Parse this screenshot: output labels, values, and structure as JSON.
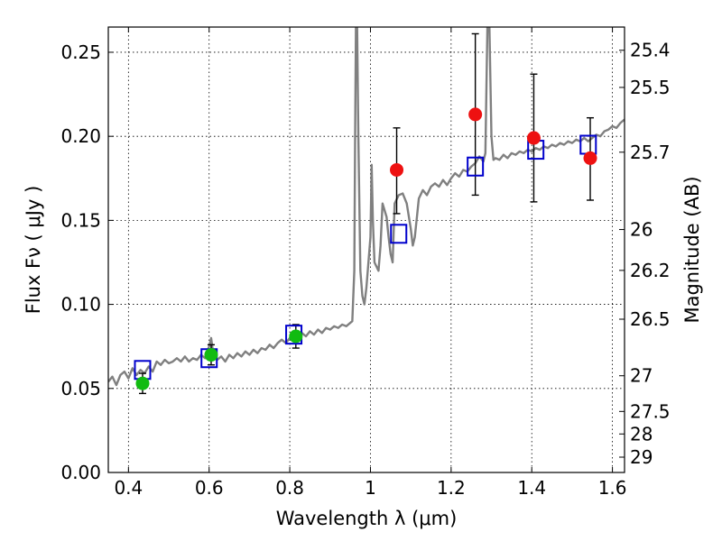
{
  "chart_data": {
    "type": "scatter",
    "xlabel": "Wavelength  λ (μm)",
    "ylabel": "Flux  Fν ( μJy )",
    "ylabel_right": "Magnitude (AB)",
    "xlim": [
      0.35,
      1.63
    ],
    "ylim": [
      0.0,
      0.265
    ],
    "grid": true,
    "x_ticks": [
      {
        "value": 0.4,
        "label": "0.4"
      },
      {
        "value": 0.6,
        "label": "0.6"
      },
      {
        "value": 0.8,
        "label": "0.8"
      },
      {
        "value": 1.0,
        "label": "1"
      },
      {
        "value": 1.2,
        "label": "1.2"
      },
      {
        "value": 1.4,
        "label": "1.4"
      },
      {
        "value": 1.6,
        "label": "1.6"
      }
    ],
    "y_ticks": [
      {
        "value": 0.0,
        "label": "0.00"
      },
      {
        "value": 0.05,
        "label": "0.05"
      },
      {
        "value": 0.1,
        "label": "0.10"
      },
      {
        "value": 0.15,
        "label": "0.15"
      },
      {
        "value": 0.2,
        "label": "0.20"
      },
      {
        "value": 0.25,
        "label": "0.25"
      }
    ],
    "right_ticks": [
      {
        "value": 25.4,
        "label": "25.4"
      },
      {
        "value": 25.5,
        "label": "25.5"
      },
      {
        "value": 25.7,
        "label": "25.7"
      },
      {
        "value": 26,
        "label": "26"
      },
      {
        "value": 26.2,
        "label": "26.2"
      },
      {
        "value": 26.5,
        "label": "26.5"
      },
      {
        "value": 27,
        "label": "27"
      },
      {
        "value": 27.5,
        "label": "27.5"
      },
      {
        "value": 28,
        "label": "28"
      },
      {
        "value": 29,
        "label": "29"
      }
    ],
    "series": [
      {
        "kind": "spectrum",
        "color": "#808080",
        "points": [
          [
            0.35,
            0.054
          ],
          [
            0.36,
            0.057
          ],
          [
            0.37,
            0.052
          ],
          [
            0.38,
            0.058
          ],
          [
            0.39,
            0.06
          ],
          [
            0.4,
            0.056
          ],
          [
            0.41,
            0.062
          ],
          [
            0.42,
            0.058
          ],
          [
            0.43,
            0.061
          ],
          [
            0.44,
            0.059
          ],
          [
            0.45,
            0.063
          ],
          [
            0.46,
            0.06
          ],
          [
            0.47,
            0.066
          ],
          [
            0.48,
            0.064
          ],
          [
            0.49,
            0.067
          ],
          [
            0.5,
            0.065
          ],
          [
            0.51,
            0.066
          ],
          [
            0.52,
            0.068
          ],
          [
            0.53,
            0.066
          ],
          [
            0.54,
            0.069
          ],
          [
            0.55,
            0.066
          ],
          [
            0.56,
            0.068
          ],
          [
            0.57,
            0.067
          ],
          [
            0.58,
            0.07
          ],
          [
            0.59,
            0.068
          ],
          [
            0.6,
            0.075
          ],
          [
            0.605,
            0.08
          ],
          [
            0.61,
            0.071
          ],
          [
            0.62,
            0.067
          ],
          [
            0.63,
            0.069
          ],
          [
            0.64,
            0.066
          ],
          [
            0.65,
            0.07
          ],
          [
            0.66,
            0.068
          ],
          [
            0.67,
            0.071
          ],
          [
            0.68,
            0.069
          ],
          [
            0.69,
            0.072
          ],
          [
            0.7,
            0.07
          ],
          [
            0.71,
            0.073
          ],
          [
            0.72,
            0.071
          ],
          [
            0.73,
            0.074
          ],
          [
            0.74,
            0.073
          ],
          [
            0.75,
            0.076
          ],
          [
            0.76,
            0.074
          ],
          [
            0.77,
            0.077
          ],
          [
            0.78,
            0.079
          ],
          [
            0.79,
            0.077
          ],
          [
            0.8,
            0.08
          ],
          [
            0.81,
            0.082
          ],
          [
            0.82,
            0.08
          ],
          [
            0.83,
            0.083
          ],
          [
            0.84,
            0.081
          ],
          [
            0.85,
            0.084
          ],
          [
            0.86,
            0.082
          ],
          [
            0.87,
            0.085
          ],
          [
            0.88,
            0.083
          ],
          [
            0.89,
            0.086
          ],
          [
            0.9,
            0.085
          ],
          [
            0.91,
            0.087
          ],
          [
            0.92,
            0.086
          ],
          [
            0.93,
            0.088
          ],
          [
            0.94,
            0.087
          ],
          [
            0.95,
            0.089
          ],
          [
            0.955,
            0.09
          ],
          [
            0.96,
            0.12
          ],
          [
            0.962,
            0.2
          ],
          [
            0.964,
            0.265
          ],
          [
            0.967,
            0.265
          ],
          [
            0.97,
            0.2
          ],
          [
            0.975,
            0.12
          ],
          [
            0.98,
            0.105
          ],
          [
            0.985,
            0.1
          ],
          [
            0.99,
            0.11
          ],
          [
            0.995,
            0.125
          ],
          [
            1.0,
            0.14
          ],
          [
            1.003,
            0.183
          ],
          [
            1.006,
            0.15
          ],
          [
            1.01,
            0.125
          ],
          [
            1.02,
            0.12
          ],
          [
            1.025,
            0.135
          ],
          [
            1.03,
            0.16
          ],
          [
            1.04,
            0.152
          ],
          [
            1.045,
            0.14
          ],
          [
            1.05,
            0.13
          ],
          [
            1.055,
            0.125
          ],
          [
            1.06,
            0.16
          ],
          [
            1.07,
            0.165
          ],
          [
            1.08,
            0.166
          ],
          [
            1.09,
            0.16
          ],
          [
            1.1,
            0.145
          ],
          [
            1.105,
            0.135
          ],
          [
            1.11,
            0.14
          ],
          [
            1.12,
            0.163
          ],
          [
            1.13,
            0.168
          ],
          [
            1.14,
            0.165
          ],
          [
            1.15,
            0.17
          ],
          [
            1.16,
            0.172
          ],
          [
            1.17,
            0.17
          ],
          [
            1.18,
            0.174
          ],
          [
            1.19,
            0.171
          ],
          [
            1.2,
            0.175
          ],
          [
            1.21,
            0.178
          ],
          [
            1.22,
            0.176
          ],
          [
            1.23,
            0.18
          ],
          [
            1.24,
            0.179
          ],
          [
            1.25,
            0.182
          ],
          [
            1.26,
            0.184
          ],
          [
            1.27,
            0.188
          ],
          [
            1.28,
            0.185
          ],
          [
            1.285,
            0.19
          ],
          [
            1.29,
            0.265
          ],
          [
            1.295,
            0.265
          ],
          [
            1.3,
            0.2
          ],
          [
            1.305,
            0.186
          ],
          [
            1.31,
            0.187
          ],
          [
            1.32,
            0.186
          ],
          [
            1.33,
            0.189
          ],
          [
            1.34,
            0.187
          ],
          [
            1.35,
            0.19
          ],
          [
            1.36,
            0.189
          ],
          [
            1.37,
            0.191
          ],
          [
            1.38,
            0.19
          ],
          [
            1.39,
            0.192
          ],
          [
            1.4,
            0.191
          ],
          [
            1.41,
            0.193
          ],
          [
            1.42,
            0.192
          ],
          [
            1.43,
            0.194
          ],
          [
            1.44,
            0.193
          ],
          [
            1.45,
            0.195
          ],
          [
            1.46,
            0.194
          ],
          [
            1.47,
            0.196
          ],
          [
            1.48,
            0.195
          ],
          [
            1.49,
            0.197
          ],
          [
            1.5,
            0.196
          ],
          [
            1.51,
            0.198
          ],
          [
            1.52,
            0.197
          ],
          [
            1.53,
            0.199
          ],
          [
            1.54,
            0.197
          ],
          [
            1.55,
            0.199
          ],
          [
            1.56,
            0.201
          ],
          [
            1.57,
            0.2
          ],
          [
            1.58,
            0.203
          ],
          [
            1.59,
            0.204
          ],
          [
            1.6,
            0.206
          ],
          [
            1.61,
            0.205
          ],
          [
            1.62,
            0.208
          ],
          [
            1.63,
            0.21
          ]
        ]
      },
      {
        "kind": "model-photometry",
        "marker": "open-square",
        "color": "#0000cc",
        "x": [
          0.435,
          0.6,
          0.81,
          1.07,
          1.26,
          1.41,
          1.54
        ],
        "y": [
          0.061,
          0.068,
          0.082,
          0.142,
          0.182,
          0.192,
          0.195
        ]
      },
      {
        "kind": "detections",
        "marker": "circle",
        "color": "#11bb11",
        "x": [
          0.435,
          0.605,
          0.815
        ],
        "y": [
          0.053,
          0.07,
          0.081
        ],
        "yerr": [
          0.006,
          0.006,
          0.007
        ]
      },
      {
        "kind": "nir-detections",
        "marker": "circle",
        "color": "#ee1111",
        "x": [
          1.065,
          1.26,
          1.405,
          1.545
        ],
        "y": [
          0.18,
          0.213,
          0.199,
          0.187
        ],
        "yerr_low": [
          0.026,
          0.048,
          0.038,
          0.025
        ],
        "yerr_high": [
          0.025,
          0.048,
          0.038,
          0.024
        ]
      }
    ]
  }
}
